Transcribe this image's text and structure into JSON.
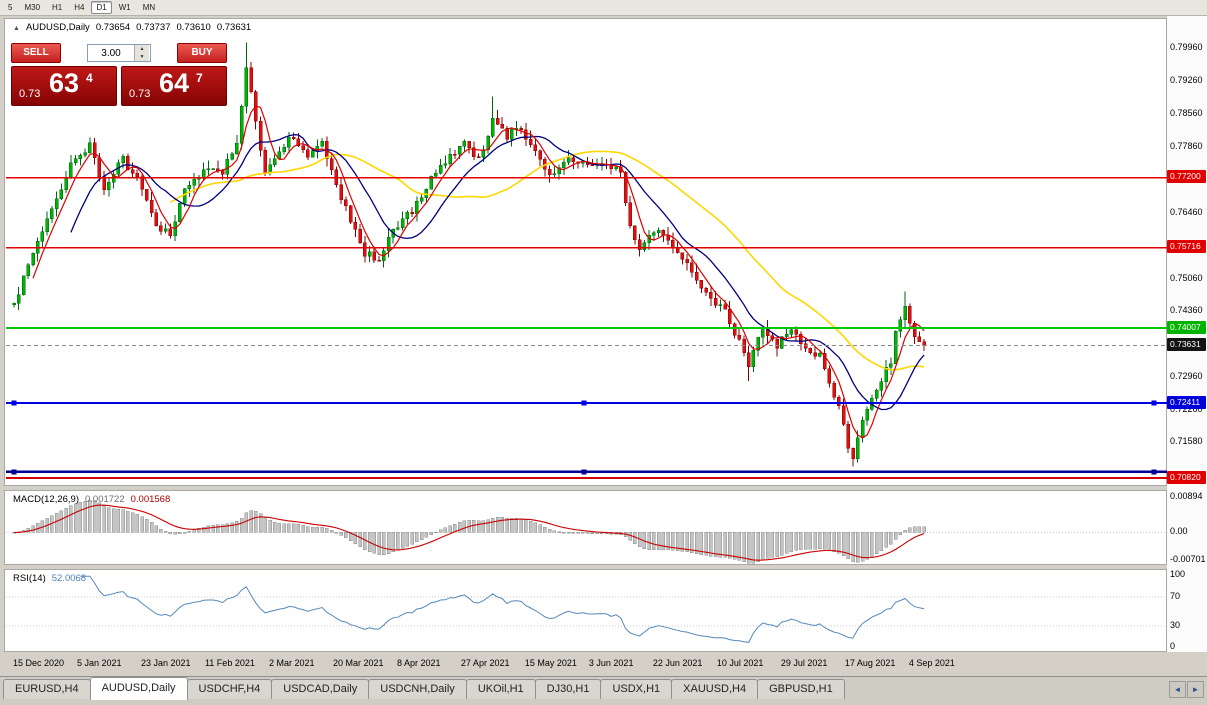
{
  "window": {
    "bg": "#d4d0c8"
  },
  "toolbar": {
    "timeframes": [
      "5",
      "M30",
      "H1",
      "H4",
      "D1",
      "W1",
      "MN"
    ],
    "active_index": 4
  },
  "chart_header": {
    "symbol": "AUDUSD,Daily",
    "open": "0.73654",
    "high": "0.73737",
    "low": "0.73610",
    "close": "0.73631"
  },
  "trade": {
    "sell_label": "SELL",
    "buy_label": "BUY",
    "volume": "3.00",
    "sell": {
      "prefix": "0.73",
      "big": "63",
      "sup": "4"
    },
    "buy": {
      "prefix": "0.73",
      "big": "64",
      "sup": "7"
    }
  },
  "panels": {
    "macd": {
      "title": "MACD(12,26,9)",
      "v1": "0.001722",
      "v2": "0.001568",
      "axis": [
        "0.00894",
        "0.00",
        "-0.00701"
      ]
    },
    "rsi": {
      "title": "RSI(14)",
      "value": "52.0068",
      "axis": [
        "100",
        "70",
        "30",
        "0"
      ]
    }
  },
  "price_axis": {
    "plain": [
      "0.79960",
      "0.79260",
      "0.78560",
      "0.77860",
      "0.76460",
      "0.75060",
      "0.74360",
      "0.72960",
      "0.72260",
      "0.71580"
    ],
    "tags": [
      {
        "text": "0.77200",
        "bg": "#e00000"
      },
      {
        "text": "0.75716",
        "bg": "#e00000"
      },
      {
        "text": "0.74007",
        "bg": "#00b400"
      },
      {
        "text": "0.73631",
        "bg": "#141414"
      },
      {
        "text": "0.72411",
        "bg": "#0000dc"
      },
      {
        "text": "0.70820",
        "bg": "#e00000"
      }
    ]
  },
  "tabs": {
    "items": [
      "EURUSD,H4",
      "AUDUSD,Daily",
      "USDCHF,H4",
      "USDCAD,Daily",
      "USDCNH,Daily",
      "UKOil,H1",
      "DJ30,H1",
      "USDX,H1",
      "XAUUSD,H4",
      "GBPUSD,H1"
    ],
    "active_index": 1,
    "scroll_left": "◄",
    "scroll_right": "►"
  },
  "colors": {
    "up": "#00b300",
    "up_stroke": "#006410",
    "down": "#e01010",
    "down_stroke": "#8a0000",
    "ma_fast": "#dd0000",
    "ma_mid": "#000080",
    "ma_slow": "#ffd700",
    "macd_bar": "#c4c4c4",
    "macd_bar_stroke": "#8e8e8e",
    "macd_signal": "#cc0000",
    "rsi": "#5588bb"
  },
  "chart_data": {
    "type": "candlestick",
    "symbol": "AUDUSD",
    "timeframe": "Daily",
    "count": 193,
    "last_close": 0.73631,
    "y_range": [
      0.70672,
      0.80531
    ],
    "x_labels": [
      "15 Dec 2020",
      "5 Jan 2021",
      "23 Jan 2021",
      "11 Feb 2021",
      "2 Mar 2021",
      "20 Mar 2021",
      "8 Apr 2021",
      "27 Apr 2021",
      "15 May 2021",
      "3 Jun 2021",
      "22 Jun 2021",
      "10 Jul 2021",
      "29 Jul 2021",
      "17 Aug 2021",
      "4 Sep 2021"
    ],
    "anchors": [
      [
        0,
        0.745
      ],
      [
        4,
        0.756
      ],
      [
        8,
        0.765
      ],
      [
        12,
        0.7745
      ],
      [
        16,
        0.779
      ],
      [
        19,
        0.77
      ],
      [
        23,
        0.776
      ],
      [
        27,
        0.77
      ],
      [
        30,
        0.7615
      ],
      [
        33,
        0.76
      ],
      [
        36,
        0.769
      ],
      [
        40,
        0.774
      ],
      [
        44,
        0.773
      ],
      [
        47,
        0.78
      ],
      [
        49,
        0.796
      ],
      [
        51,
        0.784
      ],
      [
        53,
        0.773
      ],
      [
        56,
        0.778
      ],
      [
        59,
        0.781
      ],
      [
        62,
        0.776
      ],
      [
        65,
        0.78
      ],
      [
        68,
        0.77
      ],
      [
        71,
        0.763
      ],
      [
        74,
        0.756
      ],
      [
        77,
        0.7545
      ],
      [
        80,
        0.761
      ],
      [
        84,
        0.765
      ],
      [
        88,
        0.772
      ],
      [
        92,
        0.777
      ],
      [
        95,
        0.779
      ],
      [
        98,
        0.776
      ],
      [
        101,
        0.784
      ],
      [
        104,
        0.781
      ],
      [
        107,
        0.783
      ],
      [
        110,
        0.777
      ],
      [
        113,
        0.772
      ],
      [
        116,
        0.776
      ],
      [
        119,
        0.775
      ],
      [
        122,
        0.774
      ],
      [
        125,
        0.775
      ],
      [
        128,
        0.773
      ],
      [
        130,
        0.762
      ],
      [
        132,
        0.756
      ],
      [
        135,
        0.761
      ],
      [
        138,
        0.759
      ],
      [
        141,
        0.755
      ],
      [
        144,
        0.75
      ],
      [
        147,
        0.746
      ],
      [
        150,
        0.744
      ],
      [
        153,
        0.737
      ],
      [
        155,
        0.732
      ],
      [
        158,
        0.74
      ],
      [
        161,
        0.736
      ],
      [
        164,
        0.7405
      ],
      [
        167,
        0.736
      ],
      [
        170,
        0.734
      ],
      [
        172,
        0.729
      ],
      [
        174,
        0.723
      ],
      [
        176,
        0.715
      ],
      [
        177,
        0.713
      ],
      [
        179,
        0.72
      ],
      [
        181,
        0.7255
      ],
      [
        183,
        0.729
      ],
      [
        185,
        0.733
      ],
      [
        186,
        0.739
      ],
      [
        188,
        0.745
      ],
      [
        190,
        0.738
      ],
      [
        192,
        0.73631
      ]
    ],
    "overrides": [
      {
        "i": 49,
        "high": 0.8007
      },
      {
        "i": 101,
        "high": 0.7893
      },
      {
        "i": 155,
        "low": 0.7288
      },
      {
        "i": 177,
        "low": 0.7106
      },
      {
        "i": 188,
        "high": 0.7478
      }
    ],
    "noise": 0.0016,
    "wick": 0.0018,
    "seed": 20210914,
    "ma_periods": {
      "fast": 5,
      "mid": 13,
      "slow": 34
    },
    "macd": {
      "fast": 12,
      "slow": 26,
      "signal": 9,
      "range": [
        -0.0078,
        0.0098
      ]
    },
    "rsi": {
      "period": 14,
      "levels": [
        70,
        30
      ]
    },
    "hlines": [
      {
        "price": 0.772,
        "color": "#e00000",
        "width": 1.6
      },
      {
        "price": 0.75716,
        "color": "#e00000",
        "width": 1.6
      },
      {
        "price": 0.74007,
        "color": "#00c800",
        "width": 2
      },
      {
        "price": 0.73631,
        "color": "#8a8a8a",
        "width": 1,
        "dash": "4 3"
      },
      {
        "price": 0.72411,
        "color": "#0000e0",
        "width": 2,
        "handles": true
      },
      {
        "price": 0.7095,
        "color": "#000096",
        "width": 2.4,
        "handles": true
      },
      {
        "price": 0.7082,
        "color": "#d40000",
        "width": 1.6
      }
    ]
  }
}
